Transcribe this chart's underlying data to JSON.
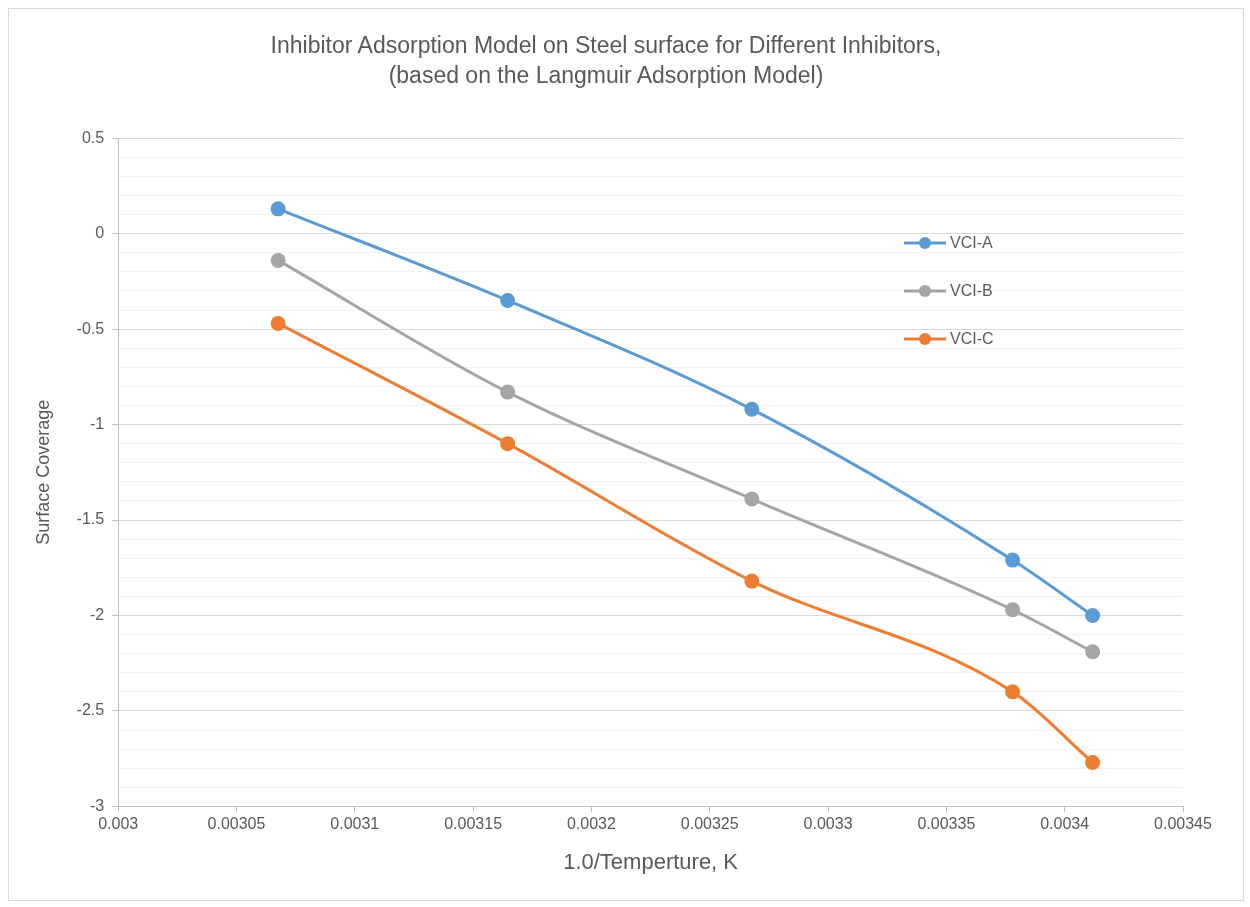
{
  "chart_data": {
    "type": "line",
    "title": "Inhibitor Adsorption Model on Steel surface for Different Inhibitors,",
    "subtitle": "(based on the Langmuir Adsorption Model)",
    "xlabel": "1.0/Temperture, K",
    "ylabel": "Surface Coverage",
    "x": [
      0.0030676,
      0.0031646,
      0.0032678,
      0.003378,
      0.0034118
    ],
    "series": [
      {
        "name": "VCI-A",
        "color": "#5b9bd5",
        "values": [
          0.13,
          -0.35,
          -0.92,
          -1.71,
          -2.0
        ]
      },
      {
        "name": "VCI-B",
        "color": "#a5a5a5",
        "values": [
          -0.14,
          -0.83,
          -1.39,
          -1.97,
          -2.19
        ]
      },
      {
        "name": "VCI-C",
        "color": "#ed7d31",
        "values": [
          -0.47,
          -1.1,
          -1.82,
          -2.4,
          -2.77
        ]
      }
    ],
    "xlim": [
      0.003,
      0.00345
    ],
    "xticks": [
      0.003,
      0.00305,
      0.0031,
      0.00315,
      0.0032,
      0.00325,
      0.0033,
      0.00335,
      0.0034,
      0.00345
    ],
    "ylim": [
      -3,
      0.5
    ],
    "yticks": [
      -3,
      {
        "value": -2.9,
        "label": null
      },
      {
        "value": -2.8,
        "label": null
      },
      {
        "value": -2.7,
        "label": null
      },
      {
        "value": -2.6,
        "label": null
      },
      -2.5,
      {
        "value": -2.4,
        "label": null
      },
      {
        "value": -2.3,
        "label": null
      },
      {
        "value": -2.2,
        "label": null
      },
      {
        "value": -2.1,
        "label": null
      },
      -2,
      {
        "value": -1.9,
        "label": null
      },
      {
        "value": -1.8,
        "label": null
      },
      {
        "value": -1.7,
        "label": null
      },
      {
        "value": -1.6,
        "label": null
      },
      -1.5,
      {
        "value": -1.4,
        "label": null
      },
      {
        "value": -1.3,
        "label": null
      },
      {
        "value": -1.2,
        "label": null
      },
      {
        "value": -1.1,
        "label": null
      },
      -1,
      {
        "value": -0.9,
        "label": null
      },
      {
        "value": -0.8,
        "label": null
      },
      {
        "value": -0.7,
        "label": null
      },
      {
        "value": -0.6,
        "label": null
      },
      -0.5,
      {
        "value": -0.4,
        "label": null
      },
      {
        "value": -0.3,
        "label": null
      },
      {
        "value": -0.2,
        "label": null
      },
      {
        "value": -0.1,
        "label": null
      },
      0,
      {
        "value": 0.1,
        "label": null
      },
      {
        "value": 0.2,
        "label": null
      },
      {
        "value": 0.3,
        "label": null
      },
      {
        "value": 0.4,
        "label": null
      },
      0.5
    ],
    "grid": "y",
    "legend": "top right",
    "marker": "circle",
    "line_style": "solid"
  }
}
